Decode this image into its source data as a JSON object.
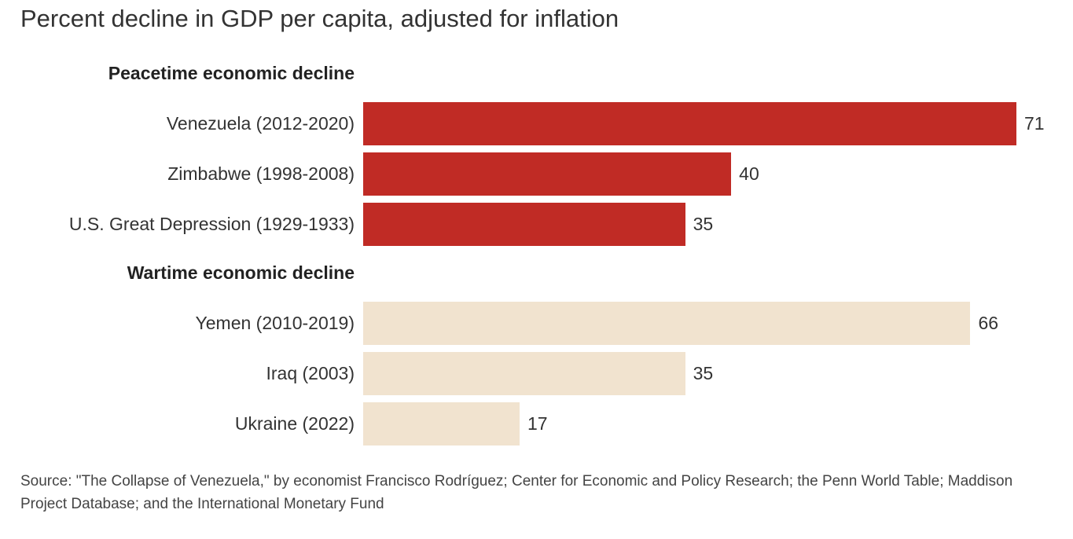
{
  "chart_data": {
    "type": "bar",
    "orientation": "horizontal",
    "title": "Percent decline in GDP per capita, adjusted for inflation",
    "xlim": [
      0,
      71
    ],
    "groups": [
      {
        "name": "Peacetime economic decline",
        "color": "#c02b25",
        "categories": [
          "Venezuela (2012-2020)",
          "Zimbabwe (1998-2008)",
          "U.S. Great Depression (1929-1933)"
        ],
        "values": [
          71,
          40,
          35
        ]
      },
      {
        "name": "Wartime economic decline",
        "color": "#f1e3cf",
        "categories": [
          "Yemen (2010-2019)",
          "Iraq (2003)",
          "Ukraine (2022)"
        ],
        "values": [
          66,
          35,
          17
        ]
      }
    ],
    "source": "Source: \"The Collapse of Venezuela,\" by economist Francisco Rodríguez; Center for Economic and Policy Research; the Penn World Table; Maddison Project Database; and the International Monetary Fund"
  }
}
